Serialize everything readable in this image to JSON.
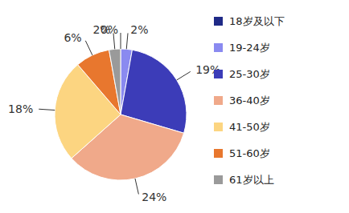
{
  "chart_data": {
    "type": "pie",
    "categories": [
      "18岁及以下",
      "19-24岁",
      "25-30岁",
      "36-40岁",
      "41-50岁",
      "51-60岁",
      "61岁以上"
    ],
    "values": [
      0,
      2,
      19,
      24,
      18,
      6,
      2
    ],
    "value_labels": [
      "0%",
      "2%",
      "19%",
      "24%",
      "18%",
      "6%",
      "2%"
    ],
    "colors": [
      "#1f2a87",
      "#8a8af0",
      "#3c3cb8",
      "#f0a98a",
      "#fcd581",
      "#e8772e",
      "#9a9a9a"
    ],
    "data_labels": true,
    "legend": "right"
  }
}
